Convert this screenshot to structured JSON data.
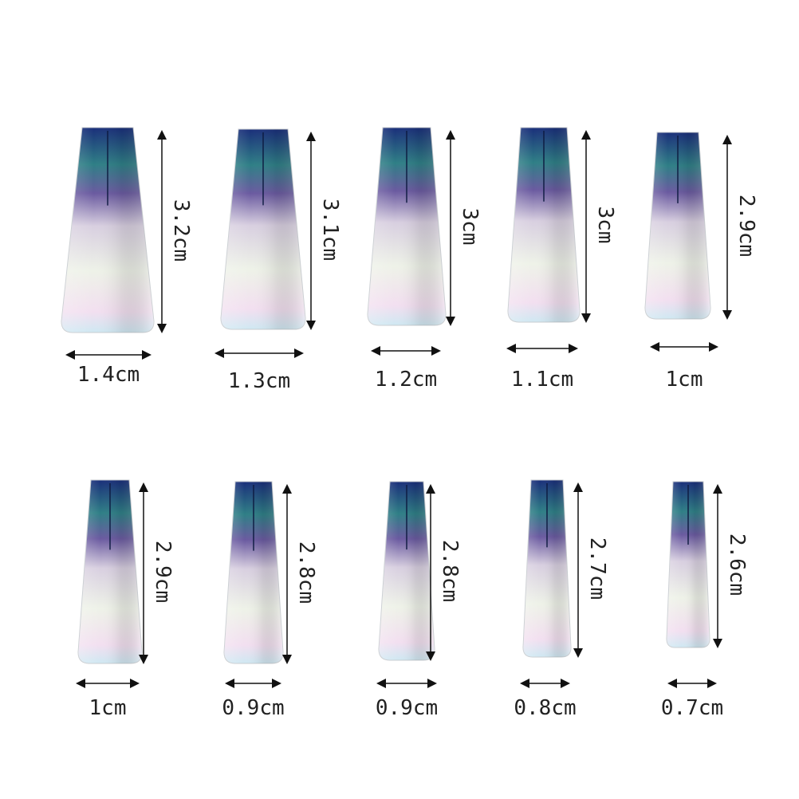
{
  "nails": [
    {
      "length": "3.2cm",
      "width": "1.4cm"
    },
    {
      "length": "3.1cm",
      "width": "1.3cm"
    },
    {
      "length": "3cm",
      "width": "1.2cm"
    },
    {
      "length": "3cm",
      "width": "1.1cm"
    },
    {
      "length": "2.9cm",
      "width": "1cm"
    },
    {
      "length": "2.9cm",
      "width": "1cm"
    },
    {
      "length": "2.8cm",
      "width": "0.9cm"
    },
    {
      "length": "2.8cm",
      "width": "0.9cm"
    },
    {
      "length": "2.7cm",
      "width": "0.8cm"
    },
    {
      "length": "2.6cm",
      "width": "0.7cm"
    }
  ],
  "colors": {
    "top": "#1f3f8a",
    "mid": "#3a8a7a",
    "tip": "#eef0ea",
    "arrow": "#111111"
  }
}
